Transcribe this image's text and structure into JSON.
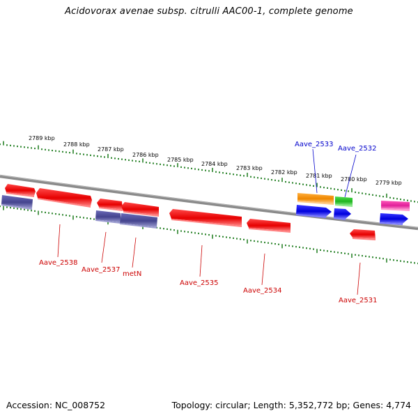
{
  "title": "Acidovorax avenae subsp. citrulli AAC00-1, complete genome",
  "footer": {
    "accession": "Accession: NC_008752",
    "topology": "Topology: circular; Length: 5,352,772 bp; Genes: 4,774"
  },
  "colors": {
    "ruler": "#1a7a1a",
    "backbone": "#888888",
    "red": "#e60000",
    "slate": "#4a4a9a",
    "orange": "#f08a00",
    "green": "#22bb22",
    "blue": "#0000e0",
    "magenta": "#e0209a",
    "label_red": "#cc0000",
    "label_blue": "#0000cc"
  },
  "ruler_labels": [
    "2789 kbp",
    "2788 kbp",
    "2787 kbp",
    "2786 kbp",
    "2785 kbp",
    "2784 kbp",
    "2783 kbp",
    "2782 kbp",
    "2781 kbp",
    "2780 kbp",
    "2779 kbp"
  ],
  "gene_labels": [
    "Aave_2533",
    "Aave_2532",
    "Aave_2538",
    "Aave_2537",
    "metN",
    "Aave_2535",
    "Aave_2534",
    "Aave_2531"
  ]
}
